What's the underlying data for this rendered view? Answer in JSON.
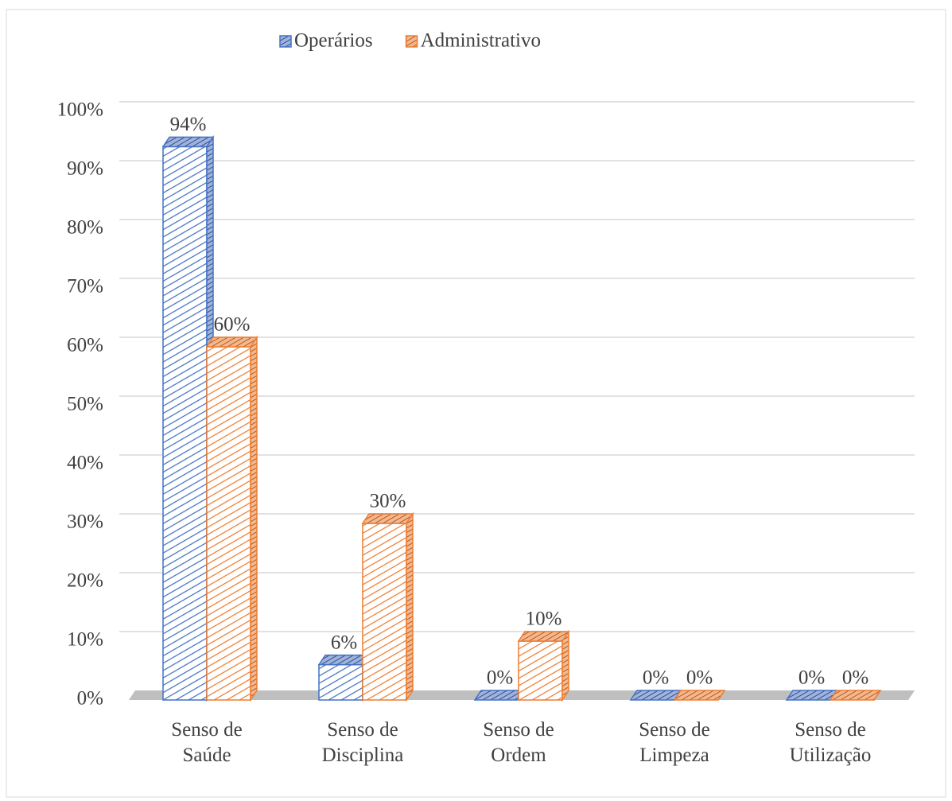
{
  "chart_data": {
    "type": "bar3d",
    "categories": [
      "Senso de Saúde",
      "Senso de Disciplina",
      "Senso de Ordem",
      "Senso de Limpeza",
      "Senso de Utilização"
    ],
    "series": [
      {
        "name": "Operários",
        "color": "#4472c4",
        "values": [
          94,
          6,
          0,
          0,
          0
        ],
        "value_labels": [
          "94%",
          "6%",
          "0%",
          "0%",
          "0%"
        ]
      },
      {
        "name": "Administrativo",
        "color": "#ed7d31",
        "values": [
          60,
          30,
          10,
          0,
          0
        ],
        "value_labels": [
          "60%",
          "30%",
          "10%",
          "0%",
          "0%"
        ]
      }
    ],
    "ylim": [
      0,
      100
    ],
    "yticks": [
      {
        "value": 0,
        "label": "0%"
      },
      {
        "value": 10,
        "label": "10%"
      },
      {
        "value": 20,
        "label": "20%"
      },
      {
        "value": 30,
        "label": "30%"
      },
      {
        "value": 40,
        "label": "40%"
      },
      {
        "value": 50,
        "label": "50%"
      },
      {
        "value": 60,
        "label": "60%"
      },
      {
        "value": 70,
        "label": "70%"
      },
      {
        "value": 80,
        "label": "80%"
      },
      {
        "value": 90,
        "label": "90%"
      },
      {
        "value": 100,
        "label": "100%"
      }
    ],
    "grid": true,
    "legend": "top"
  }
}
